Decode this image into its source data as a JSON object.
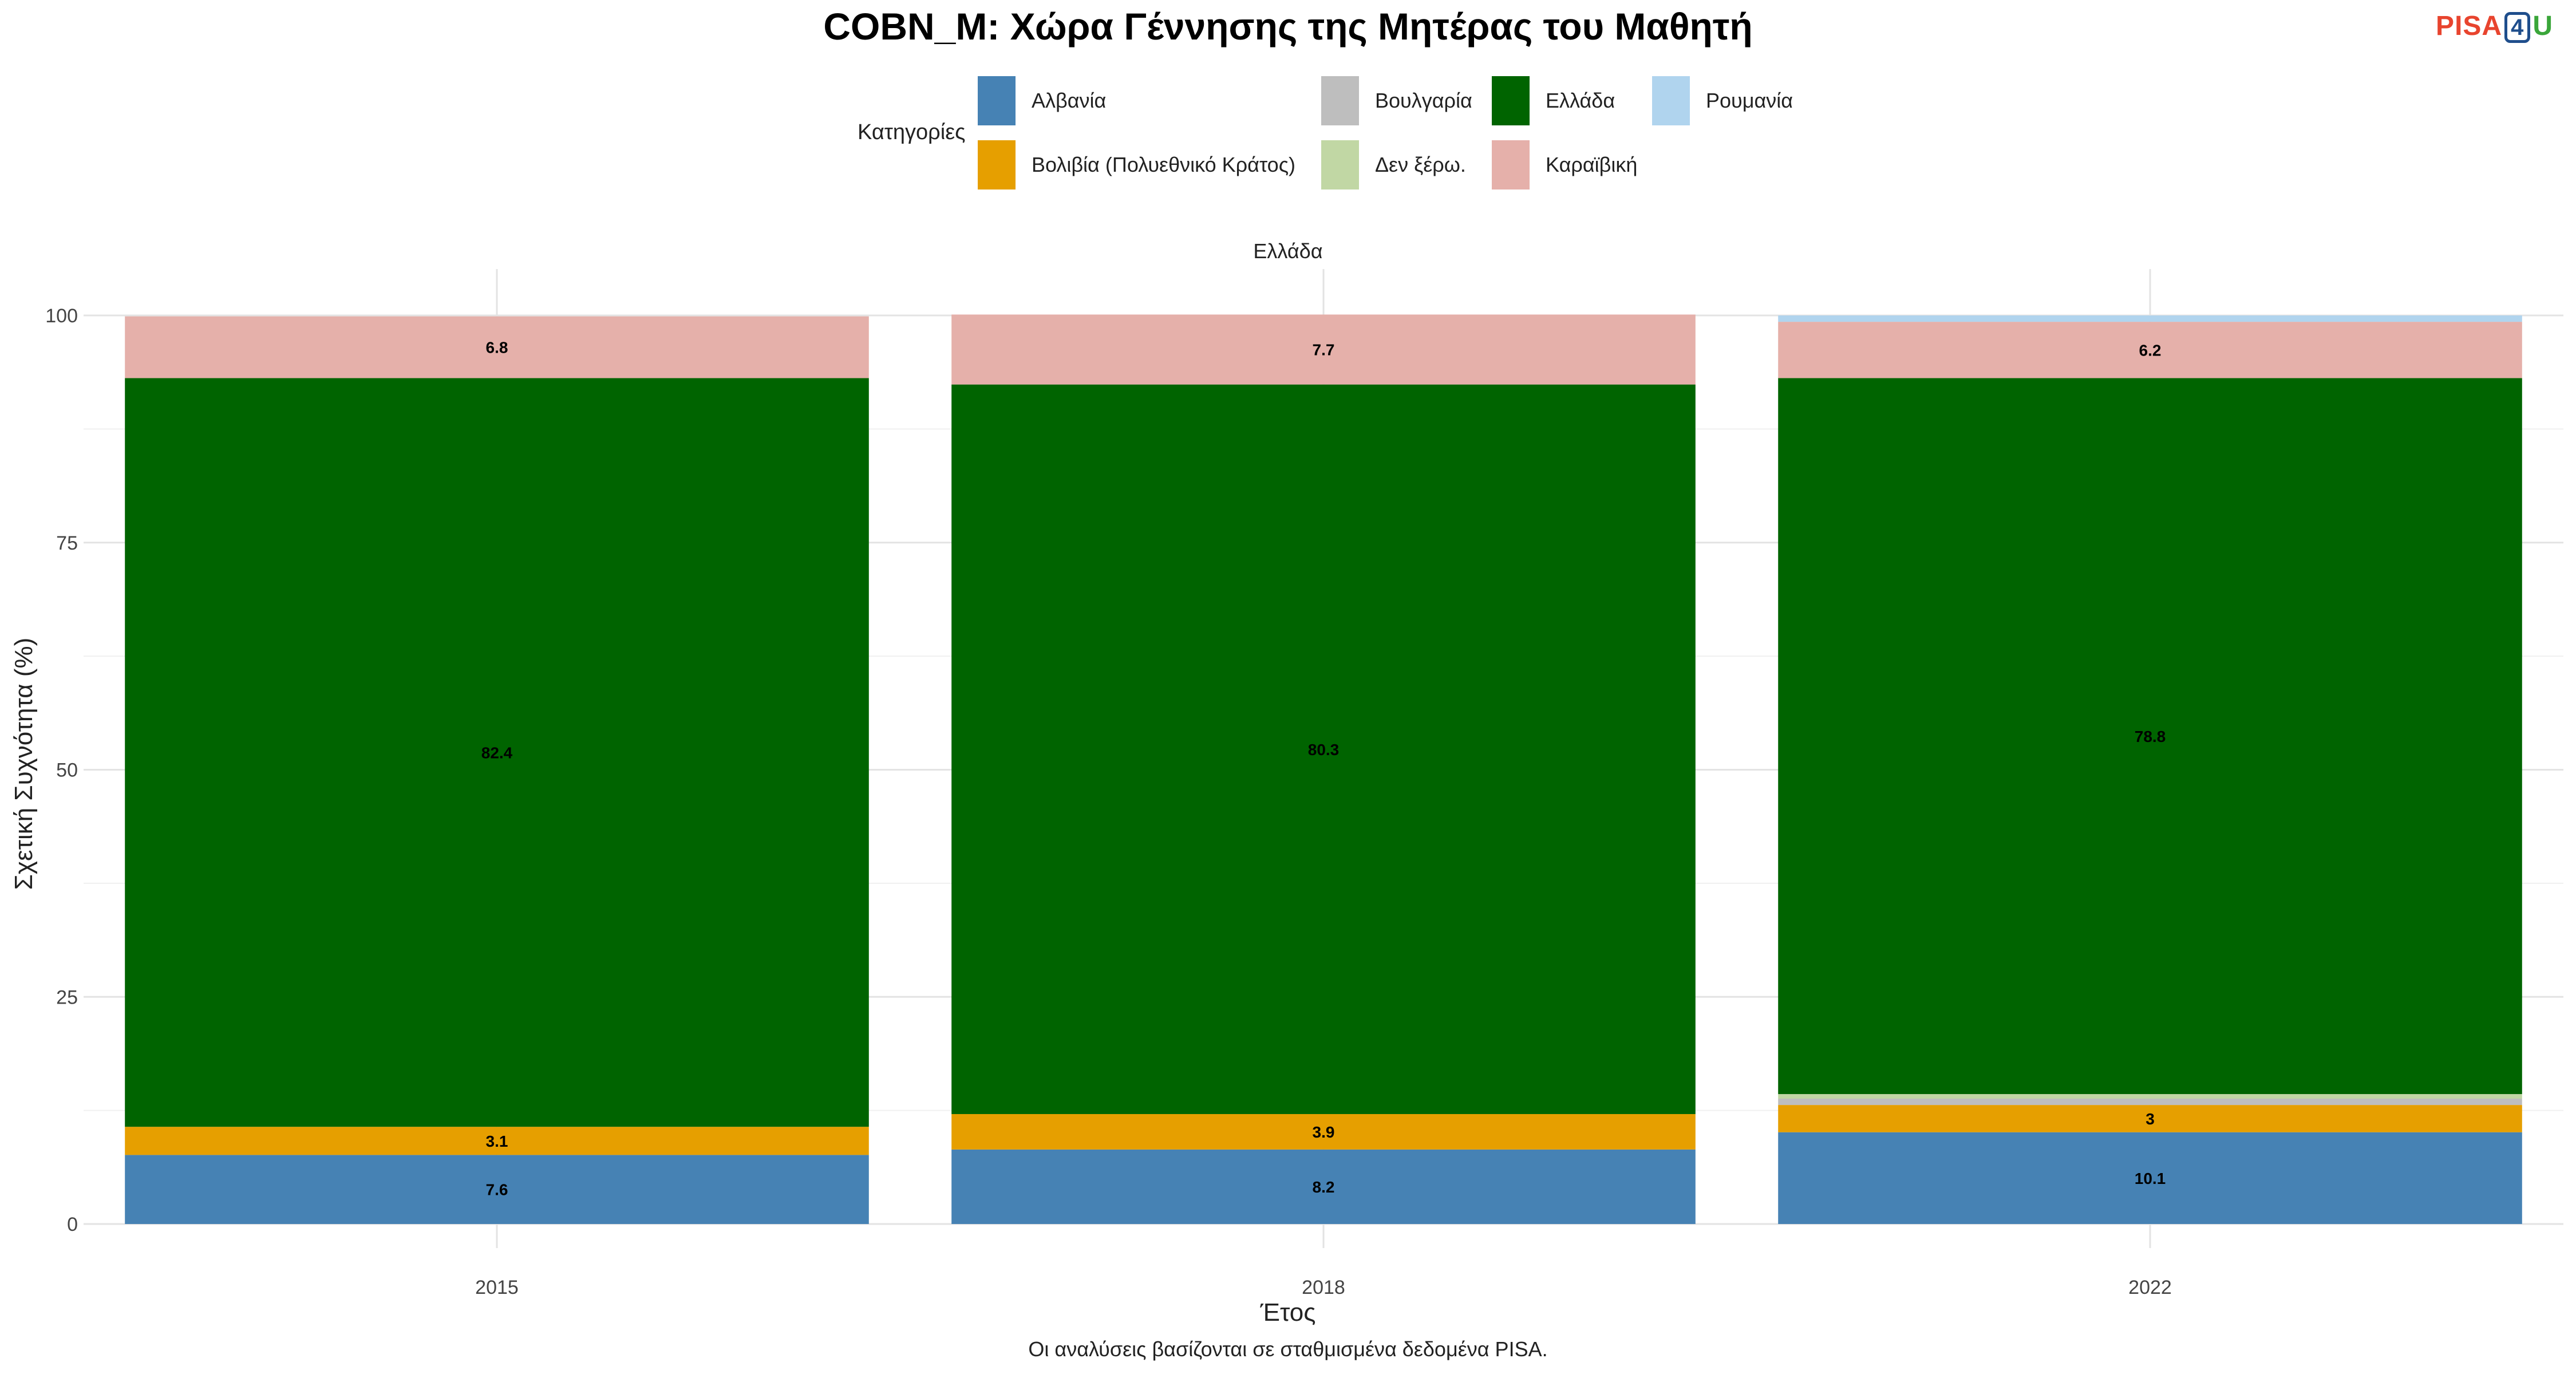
{
  "title": "COBN_M: Χώρα Γέννησης της Μητέρας του Μαθητή",
  "logo": {
    "part1": "PISA",
    "part2": "4",
    "part3": "U"
  },
  "legend": {
    "title": "Κατηγορίες",
    "items": [
      {
        "label": "Αλβανία",
        "color": "#4682B4"
      },
      {
        "label": "Βολιβία (Πολυεθνικό Κράτος)",
        "color": "#E69F00"
      },
      {
        "label": "Βουλγαρία",
        "color": "#BEBEBE"
      },
      {
        "label": "Δεν ξέρω.",
        "color": "#C1D7A4"
      },
      {
        "label": "Ελλάδα",
        "color": "#006400"
      },
      {
        "label": "Καραϊβική",
        "color": "#E5B0AA"
      },
      {
        "label": "Ρουμανία",
        "color": "#B0D4EE"
      }
    ]
  },
  "facet_label": "Ελλάδα",
  "caption": "Οι αναλύσεις βασίζονται σε σταθμισμένα δεδομένα PISA.",
  "chart_data": {
    "type": "bar",
    "stacked": true,
    "categories": [
      "2015",
      "2018",
      "2022"
    ],
    "xlabel": "Έτος",
    "ylabel": "Σχετική Συχνότητα (%)",
    "ylim": [
      0,
      100
    ],
    "yticks": [
      0,
      25,
      50,
      75,
      100
    ],
    "grid": true,
    "legend_position": "top",
    "series": [
      {
        "name": "Αλβανία",
        "color": "#4682B4",
        "values": [
          7.6,
          8.2,
          10.1
        ],
        "labels": [
          "7.6",
          "8.2",
          "10.1"
        ]
      },
      {
        "name": "Βολιβία (Πολυεθνικό Κράτος)",
        "color": "#E69F00",
        "values": [
          3.1,
          3.9,
          3.0
        ],
        "labels": [
          "3.1",
          "3.9",
          "3"
        ]
      },
      {
        "name": "Βουλγαρία",
        "color": "#BEBEBE",
        "values": [
          0,
          0,
          0.7
        ],
        "labels": [
          "",
          "",
          ""
        ]
      },
      {
        "name": "Δεν ξέρω.",
        "color": "#C1D7A4",
        "values": [
          0,
          0,
          0.5
        ],
        "labels": [
          "",
          "",
          ""
        ]
      },
      {
        "name": "Ελλάδα",
        "color": "#006400",
        "values": [
          82.4,
          80.3,
          78.8
        ],
        "labels": [
          "82.4",
          "80.3",
          "78.8"
        ]
      },
      {
        "name": "Καραϊβική",
        "color": "#E5B0AA",
        "values": [
          6.8,
          7.7,
          6.2
        ],
        "labels": [
          "6.8",
          "7.7",
          "6.2"
        ]
      },
      {
        "name": "Ρουμανία",
        "color": "#B0D4EE",
        "values": [
          0,
          0,
          0.7
        ],
        "labels": [
          "",
          "",
          ""
        ]
      }
    ]
  }
}
